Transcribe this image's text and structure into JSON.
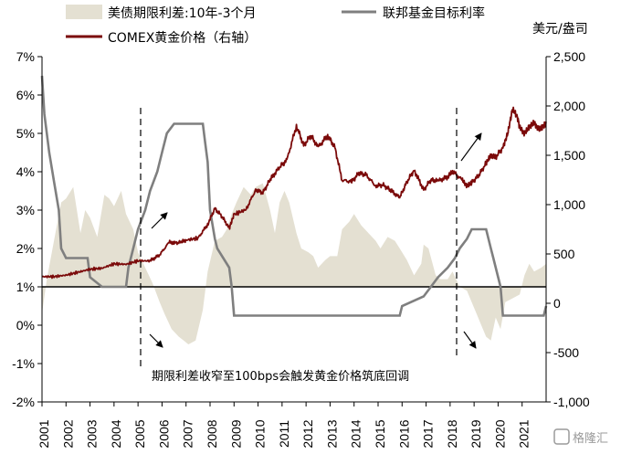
{
  "chart_data": {
    "type": "area",
    "legend": {
      "spread": "美债期限利差:10年-3个月",
      "fed": "联邦基金目标利率",
      "gold": "COMEX黄金价格（右轴）"
    },
    "right_unit": "美元/盎司",
    "annotation": "期限利差收窄至100bps会触发黄金价格筑底回调",
    "x_ticks": [
      "2001",
      "2002",
      "2003",
      "2004",
      "2005",
      "2006",
      "2007",
      "2008",
      "2009",
      "2010",
      "2011",
      "2012",
      "2013",
      "2014",
      "2015",
      "2016",
      "2017",
      "2018",
      "2019",
      "2020",
      "2021"
    ],
    "left_axis": {
      "min": -2,
      "max": 7,
      "ticks": [
        "-2%",
        "-1%",
        "0%",
        "1%",
        "2%",
        "3%",
        "4%",
        "5%",
        "6%",
        "7%"
      ],
      "baseline": 1
    },
    "right_axis": {
      "min": -1000,
      "max": 2500,
      "ticks": [
        "-1,000",
        "-500",
        "0",
        "500",
        "1,000",
        "1,500",
        "2,000",
        "2,500"
      ]
    },
    "colors": {
      "spread": "#e4e0d2",
      "fed": "#7f7f7f",
      "gold": "#7b0a0a",
      "baseline": "#000000"
    },
    "series": [
      {
        "name": "美债期限利差:10年-3个月",
        "axis": "left",
        "style": "area",
        "points": [
          [
            2001.0,
            0.3
          ],
          [
            2001.2,
            1.2
          ],
          [
            2001.5,
            2.2
          ],
          [
            2001.8,
            3.2
          ],
          [
            2002.0,
            3.3
          ],
          [
            2002.3,
            3.6
          ],
          [
            2002.6,
            2.4
          ],
          [
            2002.8,
            3.0
          ],
          [
            2003.0,
            2.8
          ],
          [
            2003.3,
            2.3
          ],
          [
            2003.6,
            3.4
          ],
          [
            2003.8,
            3.3
          ],
          [
            2004.0,
            3.1
          ],
          [
            2004.3,
            3.5
          ],
          [
            2004.5,
            2.9
          ],
          [
            2004.8,
            2.5
          ],
          [
            2005.0,
            1.9
          ],
          [
            2005.3,
            1.5
          ],
          [
            2005.6,
            1.1
          ],
          [
            2005.9,
            0.6
          ],
          [
            2006.1,
            0.3
          ],
          [
            2006.4,
            -0.1
          ],
          [
            2006.7,
            -0.3
          ],
          [
            2006.9,
            -0.4
          ],
          [
            2007.1,
            -0.5
          ],
          [
            2007.4,
            -0.4
          ],
          [
            2007.7,
            0.4
          ],
          [
            2007.9,
            1.4
          ],
          [
            2008.2,
            2.2
          ],
          [
            2008.5,
            2.3
          ],
          [
            2008.7,
            2.5
          ],
          [
            2008.9,
            2.9
          ],
          [
            2009.1,
            3.2
          ],
          [
            2009.4,
            3.6
          ],
          [
            2009.7,
            3.4
          ],
          [
            2009.9,
            3.6
          ],
          [
            2010.2,
            3.7
          ],
          [
            2010.5,
            3.0
          ],
          [
            2010.7,
            2.4
          ],
          [
            2010.9,
            3.2
          ],
          [
            2011.1,
            3.5
          ],
          [
            2011.3,
            3.2
          ],
          [
            2011.6,
            2.4
          ],
          [
            2011.8,
            2.0
          ],
          [
            2012.1,
            1.9
          ],
          [
            2012.3,
            1.8
          ],
          [
            2012.5,
            1.5
          ],
          [
            2012.8,
            1.7
          ],
          [
            2013.0,
            1.8
          ],
          [
            2013.3,
            1.8
          ],
          [
            2013.5,
            2.5
          ],
          [
            2013.8,
            2.7
          ],
          [
            2014.0,
            2.9
          ],
          [
            2014.3,
            2.6
          ],
          [
            2014.6,
            2.4
          ],
          [
            2014.9,
            2.2
          ],
          [
            2015.1,
            2.0
          ],
          [
            2015.4,
            2.3
          ],
          [
            2015.7,
            2.2
          ],
          [
            2015.9,
            2.0
          ],
          [
            2016.2,
            1.7
          ],
          [
            2016.5,
            1.3
          ],
          [
            2016.8,
            1.6
          ],
          [
            2016.9,
            2.1
          ],
          [
            2017.1,
            2.0
          ],
          [
            2017.4,
            1.3
          ],
          [
            2017.6,
            1.2
          ],
          [
            2017.9,
            1.2
          ],
          [
            2018.1,
            1.4
          ],
          [
            2018.4,
            1.0
          ],
          [
            2018.7,
            0.9
          ],
          [
            2018.9,
            0.6
          ],
          [
            2019.1,
            0.3
          ],
          [
            2019.3,
            0.0
          ],
          [
            2019.5,
            -0.3
          ],
          [
            2019.7,
            -0.4
          ],
          [
            2019.9,
            0.2
          ],
          [
            2020.1,
            -0.1
          ],
          [
            2020.3,
            0.6
          ],
          [
            2020.6,
            0.7
          ],
          [
            2020.9,
            0.8
          ],
          [
            2021.1,
            1.3
          ],
          [
            2021.3,
            1.6
          ],
          [
            2021.5,
            1.4
          ],
          [
            2021.8,
            1.5
          ],
          [
            2022.0,
            1.6
          ]
        ]
      },
      {
        "name": "联邦基金目标利率",
        "axis": "left",
        "style": "line",
        "points": [
          [
            2001.0,
            6.5
          ],
          [
            2001.1,
            5.5
          ],
          [
            2001.3,
            4.5
          ],
          [
            2001.5,
            3.75
          ],
          [
            2001.7,
            3.0
          ],
          [
            2001.8,
            2.0
          ],
          [
            2002.0,
            1.75
          ],
          [
            2002.9,
            1.75
          ],
          [
            2003.0,
            1.25
          ],
          [
            2003.5,
            1.0
          ],
          [
            2004.5,
            1.0
          ],
          [
            2004.6,
            1.5
          ],
          [
            2004.8,
            2.0
          ],
          [
            2005.0,
            2.5
          ],
          [
            2005.3,
            3.0
          ],
          [
            2005.5,
            3.5
          ],
          [
            2005.8,
            4.0
          ],
          [
            2006.0,
            4.5
          ],
          [
            2006.2,
            5.0
          ],
          [
            2006.5,
            5.25
          ],
          [
            2007.7,
            5.25
          ],
          [
            2007.8,
            4.75
          ],
          [
            2007.9,
            4.25
          ],
          [
            2008.0,
            3.0
          ],
          [
            2008.2,
            2.25
          ],
          [
            2008.3,
            2.0
          ],
          [
            2008.8,
            1.5
          ],
          [
            2008.9,
            1.0
          ],
          [
            2009.0,
            0.25
          ],
          [
            2015.9,
            0.25
          ],
          [
            2016.0,
            0.5
          ],
          [
            2016.9,
            0.75
          ],
          [
            2017.2,
            1.0
          ],
          [
            2017.5,
            1.25
          ],
          [
            2017.9,
            1.5
          ],
          [
            2018.2,
            1.75
          ],
          [
            2018.4,
            2.0
          ],
          [
            2018.7,
            2.25
          ],
          [
            2018.9,
            2.5
          ],
          [
            2019.5,
            2.5
          ],
          [
            2019.6,
            2.25
          ],
          [
            2019.7,
            2.0
          ],
          [
            2019.8,
            1.75
          ],
          [
            2020.1,
            1.0
          ],
          [
            2020.2,
            0.25
          ],
          [
            2021.9,
            0.25
          ],
          [
            2022.0,
            0.5
          ]
        ]
      },
      {
        "name": "COMEX黄金价格（右轴）",
        "axis": "right",
        "style": "line",
        "points": [
          [
            2001.0,
            270
          ],
          [
            2001.5,
            270
          ],
          [
            2002.0,
            285
          ],
          [
            2002.5,
            315
          ],
          [
            2003.0,
            345
          ],
          [
            2003.5,
            355
          ],
          [
            2004.0,
            400
          ],
          [
            2004.5,
            395
          ],
          [
            2005.0,
            430
          ],
          [
            2005.5,
            430
          ],
          [
            2005.9,
            490
          ],
          [
            2006.3,
            620
          ],
          [
            2006.5,
            610
          ],
          [
            2006.8,
            620
          ],
          [
            2007.0,
            640
          ],
          [
            2007.5,
            660
          ],
          [
            2007.9,
            800
          ],
          [
            2008.2,
            960
          ],
          [
            2008.5,
            880
          ],
          [
            2008.8,
            760
          ],
          [
            2009.0,
            900
          ],
          [
            2009.5,
            950
          ],
          [
            2009.9,
            1150
          ],
          [
            2010.2,
            1120
          ],
          [
            2010.5,
            1250
          ],
          [
            2010.9,
            1380
          ],
          [
            2011.2,
            1450
          ],
          [
            2011.6,
            1800
          ],
          [
            2011.9,
            1600
          ],
          [
            2012.2,
            1700
          ],
          [
            2012.5,
            1580
          ],
          [
            2012.9,
            1700
          ],
          [
            2013.2,
            1580
          ],
          [
            2013.5,
            1250
          ],
          [
            2013.9,
            1230
          ],
          [
            2014.2,
            1320
          ],
          [
            2014.5,
            1300
          ],
          [
            2014.9,
            1190
          ],
          [
            2015.2,
            1200
          ],
          [
            2015.5,
            1150
          ],
          [
            2015.9,
            1070
          ],
          [
            2016.2,
            1230
          ],
          [
            2016.5,
            1350
          ],
          [
            2016.9,
            1150
          ],
          [
            2017.2,
            1250
          ],
          [
            2017.5,
            1240
          ],
          [
            2017.9,
            1280
          ],
          [
            2018.1,
            1340
          ],
          [
            2018.5,
            1250
          ],
          [
            2018.7,
            1190
          ],
          [
            2018.9,
            1220
          ],
          [
            2019.2,
            1300
          ],
          [
            2019.5,
            1420
          ],
          [
            2019.7,
            1500
          ],
          [
            2019.9,
            1480
          ],
          [
            2020.2,
            1580
          ],
          [
            2020.4,
            1720
          ],
          [
            2020.6,
            1970
          ],
          [
            2020.8,
            1890
          ],
          [
            2020.9,
            1780
          ],
          [
            2021.1,
            1720
          ],
          [
            2021.3,
            1790
          ],
          [
            2021.5,
            1830
          ],
          [
            2021.7,
            1760
          ],
          [
            2021.9,
            1800
          ],
          [
            2022.0,
            1830
          ]
        ]
      }
    ]
  },
  "watermark": "格隆汇"
}
